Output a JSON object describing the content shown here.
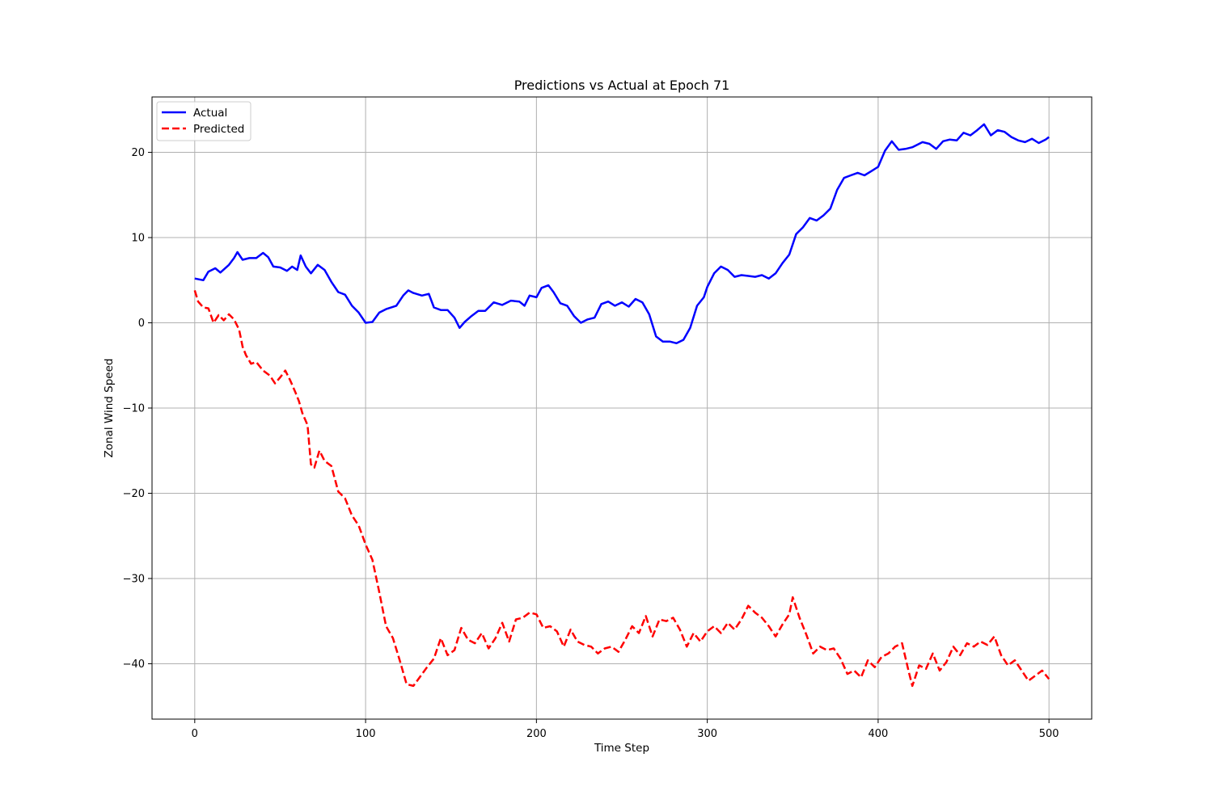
{
  "chart_data": {
    "type": "line",
    "title": "Predictions vs Actual at Epoch 71",
    "xlabel": "Time Step",
    "ylabel": "Zonal Wind Speed",
    "xlim": [
      -25,
      525
    ],
    "ylim": [
      -46.5,
      26.5
    ],
    "x_ticks": [
      0,
      100,
      200,
      300,
      400,
      500
    ],
    "y_ticks": [
      -40,
      -30,
      -20,
      -10,
      0,
      10,
      20
    ],
    "grid": true,
    "legend_position": "top-left",
    "series": [
      {
        "name": "Actual",
        "color": "#0000ff",
        "style": "solid",
        "points": [
          [
            0,
            5.2
          ],
          [
            5,
            5.0
          ],
          [
            8,
            6.0
          ],
          [
            12,
            6.4
          ],
          [
            15,
            5.9
          ],
          [
            20,
            6.8
          ],
          [
            23,
            7.6
          ],
          [
            25,
            8.3
          ],
          [
            28,
            7.4
          ],
          [
            32,
            7.6
          ],
          [
            36,
            7.6
          ],
          [
            40,
            8.2
          ],
          [
            43,
            7.7
          ],
          [
            46,
            6.6
          ],
          [
            50,
            6.5
          ],
          [
            54,
            6.1
          ],
          [
            57,
            6.6
          ],
          [
            60,
            6.2
          ],
          [
            62,
            7.9
          ],
          [
            65,
            6.6
          ],
          [
            68,
            5.8
          ],
          [
            72,
            6.8
          ],
          [
            76,
            6.2
          ],
          [
            80,
            4.8
          ],
          [
            84,
            3.6
          ],
          [
            88,
            3.3
          ],
          [
            92,
            2.0
          ],
          [
            96,
            1.2
          ],
          [
            100,
            0.0
          ],
          [
            104,
            0.1
          ],
          [
            108,
            1.2
          ],
          [
            112,
            1.6
          ],
          [
            118,
            2.0
          ],
          [
            122,
            3.2
          ],
          [
            125,
            3.8
          ],
          [
            128,
            3.5
          ],
          [
            133,
            3.2
          ],
          [
            137,
            3.4
          ],
          [
            140,
            1.8
          ],
          [
            144,
            1.5
          ],
          [
            148,
            1.5
          ],
          [
            152,
            0.6
          ],
          [
            155,
            -0.6
          ],
          [
            158,
            0.1
          ],
          [
            162,
            0.8
          ],
          [
            166,
            1.4
          ],
          [
            170,
            1.4
          ],
          [
            175,
            2.4
          ],
          [
            180,
            2.1
          ],
          [
            185,
            2.6
          ],
          [
            190,
            2.5
          ],
          [
            193,
            2.0
          ],
          [
            196,
            3.2
          ],
          [
            200,
            3.0
          ],
          [
            203,
            4.1
          ],
          [
            207,
            4.4
          ],
          [
            210,
            3.6
          ],
          [
            214,
            2.3
          ],
          [
            218,
            2.0
          ],
          [
            222,
            0.8
          ],
          [
            226,
            0.0
          ],
          [
            230,
            0.4
          ],
          [
            234,
            0.6
          ],
          [
            238,
            2.2
          ],
          [
            242,
            2.5
          ],
          [
            246,
            2.0
          ],
          [
            250,
            2.4
          ],
          [
            254,
            1.9
          ],
          [
            258,
            2.8
          ],
          [
            262,
            2.4
          ],
          [
            266,
            1.0
          ],
          [
            270,
            -1.6
          ],
          [
            274,
            -2.2
          ],
          [
            278,
            -2.2
          ],
          [
            282,
            -2.4
          ],
          [
            286,
            -2.0
          ],
          [
            290,
            -0.6
          ],
          [
            294,
            2.0
          ],
          [
            298,
            3.0
          ],
          [
            300,
            4.2
          ],
          [
            304,
            5.8
          ],
          [
            308,
            6.6
          ],
          [
            312,
            6.2
          ],
          [
            316,
            5.4
          ],
          [
            320,
            5.6
          ],
          [
            324,
            5.5
          ],
          [
            328,
            5.4
          ],
          [
            332,
            5.6
          ],
          [
            336,
            5.2
          ],
          [
            340,
            5.8
          ],
          [
            344,
            7.0
          ],
          [
            348,
            8.0
          ],
          [
            352,
            10.4
          ],
          [
            356,
            11.2
          ],
          [
            360,
            12.3
          ],
          [
            364,
            12.0
          ],
          [
            368,
            12.6
          ],
          [
            372,
            13.4
          ],
          [
            376,
            15.6
          ],
          [
            380,
            17.0
          ],
          [
            384,
            17.3
          ],
          [
            388,
            17.6
          ],
          [
            392,
            17.3
          ],
          [
            396,
            17.8
          ],
          [
            400,
            18.3
          ],
          [
            404,
            20.2
          ],
          [
            408,
            21.3
          ],
          [
            412,
            20.3
          ],
          [
            416,
            20.4
          ],
          [
            420,
            20.6
          ],
          [
            426,
            21.2
          ],
          [
            430,
            21.0
          ],
          [
            434,
            20.4
          ],
          [
            438,
            21.3
          ],
          [
            442,
            21.5
          ],
          [
            446,
            21.4
          ],
          [
            450,
            22.3
          ],
          [
            454,
            22.0
          ],
          [
            458,
            22.6
          ],
          [
            462,
            23.3
          ],
          [
            466,
            22.0
          ],
          [
            470,
            22.6
          ],
          [
            474,
            22.4
          ],
          [
            478,
            21.8
          ],
          [
            482,
            21.4
          ],
          [
            486,
            21.2
          ],
          [
            490,
            21.6
          ],
          [
            494,
            21.1
          ],
          [
            498,
            21.5
          ],
          [
            500,
            21.8
          ]
        ]
      },
      {
        "name": "Predicted",
        "color": "#ff0000",
        "style": "dashed",
        "points": [
          [
            0,
            3.8
          ],
          [
            2,
            2.5
          ],
          [
            5,
            1.8
          ],
          [
            8,
            1.7
          ],
          [
            11,
            0.0
          ],
          [
            14,
            0.9
          ],
          [
            17,
            0.3
          ],
          [
            20,
            1.0
          ],
          [
            23,
            0.4
          ],
          [
            26,
            -0.8
          ],
          [
            28,
            -2.8
          ],
          [
            30,
            -3.8
          ],
          [
            33,
            -4.8
          ],
          [
            36,
            -4.6
          ],
          [
            40,
            -5.6
          ],
          [
            44,
            -6.2
          ],
          [
            47,
            -7.1
          ],
          [
            50,
            -6.4
          ],
          [
            53,
            -5.6
          ],
          [
            56,
            -6.8
          ],
          [
            59,
            -8.2
          ],
          [
            61,
            -9.2
          ],
          [
            63,
            -10.6
          ],
          [
            66,
            -12.0
          ],
          [
            68,
            -16.6
          ],
          [
            70,
            -17.0
          ],
          [
            73,
            -15.0
          ],
          [
            76,
            -16.2
          ],
          [
            80,
            -16.8
          ],
          [
            84,
            -19.8
          ],
          [
            88,
            -20.6
          ],
          [
            92,
            -22.6
          ],
          [
            96,
            -23.8
          ],
          [
            100,
            -26.0
          ],
          [
            104,
            -27.8
          ],
          [
            108,
            -31.6
          ],
          [
            112,
            -35.6
          ],
          [
            116,
            -37.0
          ],
          [
            120,
            -39.6
          ],
          [
            124,
            -42.4
          ],
          [
            128,
            -42.6
          ],
          [
            132,
            -41.5
          ],
          [
            136,
            -40.4
          ],
          [
            140,
            -39.4
          ],
          [
            144,
            -37.0
          ],
          [
            148,
            -39.0
          ],
          [
            152,
            -38.4
          ],
          [
            156,
            -35.8
          ],
          [
            160,
            -37.2
          ],
          [
            164,
            -37.6
          ],
          [
            168,
            -36.4
          ],
          [
            172,
            -38.2
          ],
          [
            176,
            -37.0
          ],
          [
            180,
            -35.2
          ],
          [
            184,
            -37.4
          ],
          [
            188,
            -34.8
          ],
          [
            192,
            -34.6
          ],
          [
            196,
            -34.0
          ],
          [
            200,
            -34.2
          ],
          [
            204,
            -35.8
          ],
          [
            208,
            -35.6
          ],
          [
            212,
            -36.2
          ],
          [
            216,
            -38.0
          ],
          [
            220,
            -36.0
          ],
          [
            224,
            -37.4
          ],
          [
            228,
            -37.8
          ],
          [
            232,
            -38.0
          ],
          [
            236,
            -38.8
          ],
          [
            240,
            -38.2
          ],
          [
            244,
            -38.0
          ],
          [
            248,
            -38.6
          ],
          [
            252,
            -37.2
          ],
          [
            256,
            -35.6
          ],
          [
            260,
            -36.4
          ],
          [
            264,
            -34.4
          ],
          [
            268,
            -36.8
          ],
          [
            272,
            -34.8
          ],
          [
            276,
            -35.0
          ],
          [
            280,
            -34.6
          ],
          [
            284,
            -36.0
          ],
          [
            288,
            -38.0
          ],
          [
            292,
            -36.4
          ],
          [
            296,
            -37.4
          ],
          [
            300,
            -36.2
          ],
          [
            304,
            -35.6
          ],
          [
            308,
            -36.4
          ],
          [
            312,
            -35.2
          ],
          [
            316,
            -36.0
          ],
          [
            320,
            -34.8
          ],
          [
            324,
            -33.2
          ],
          [
            328,
            -34.0
          ],
          [
            332,
            -34.6
          ],
          [
            336,
            -35.6
          ],
          [
            340,
            -36.8
          ],
          [
            344,
            -35.4
          ],
          [
            348,
            -34.2
          ],
          [
            350,
            -32.2
          ],
          [
            354,
            -34.6
          ],
          [
            358,
            -36.6
          ],
          [
            362,
            -38.8
          ],
          [
            366,
            -38.0
          ],
          [
            370,
            -38.4
          ],
          [
            374,
            -38.2
          ],
          [
            378,
            -39.4
          ],
          [
            382,
            -41.2
          ],
          [
            386,
            -40.8
          ],
          [
            390,
            -41.6
          ],
          [
            394,
            -39.6
          ],
          [
            398,
            -40.4
          ],
          [
            402,
            -39.2
          ],
          [
            406,
            -38.8
          ],
          [
            410,
            -38.0
          ],
          [
            414,
            -37.6
          ],
          [
            418,
            -41.0
          ],
          [
            420,
            -42.6
          ],
          [
            424,
            -40.2
          ],
          [
            428,
            -40.6
          ],
          [
            432,
            -38.8
          ],
          [
            436,
            -40.8
          ],
          [
            440,
            -39.8
          ],
          [
            444,
            -38.0
          ],
          [
            448,
            -39.0
          ],
          [
            452,
            -37.6
          ],
          [
            456,
            -38.0
          ],
          [
            460,
            -37.4
          ],
          [
            464,
            -37.8
          ],
          [
            468,
            -36.8
          ],
          [
            472,
            -39.0
          ],
          [
            476,
            -40.2
          ],
          [
            480,
            -39.6
          ],
          [
            484,
            -40.8
          ],
          [
            488,
            -42.0
          ],
          [
            492,
            -41.4
          ],
          [
            496,
            -40.8
          ],
          [
            500,
            -41.8
          ]
        ]
      }
    ]
  }
}
